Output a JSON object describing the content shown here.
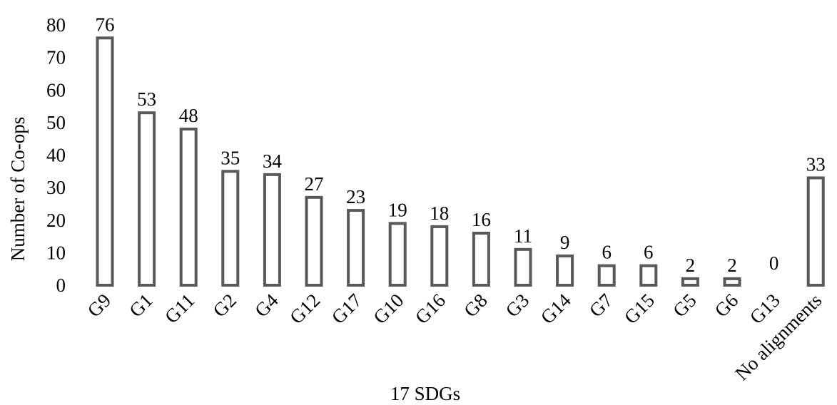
{
  "chart_data": {
    "type": "bar",
    "categories": [
      "G9",
      "G1",
      "G11",
      "G2",
      "G4",
      "G12",
      "G17",
      "G10",
      "G16",
      "G8",
      "G3",
      "G14",
      "G7",
      "G15",
      "G5",
      "G6",
      "G13",
      "No alignments"
    ],
    "values": [
      76,
      53,
      48,
      35,
      34,
      27,
      23,
      19,
      18,
      16,
      11,
      9,
      6,
      6,
      2,
      2,
      0,
      33
    ],
    "data_labels": [
      "76",
      "53",
      "48",
      "35",
      "34",
      "27",
      "23",
      "19",
      "18",
      "16",
      "11",
      "9",
      "6",
      "6",
      "2",
      "2",
      "0",
      "33"
    ],
    "xlabel": "17 SDGs",
    "ylabel": "Number of Co-ops",
    "ylim": [
      0,
      80
    ],
    "yticks": [
      0,
      10,
      20,
      30,
      40,
      50,
      60,
      70,
      80
    ],
    "grid": false,
    "legend": "none",
    "bar_fill": "#ffffff",
    "bar_stroke": "#595959"
  }
}
